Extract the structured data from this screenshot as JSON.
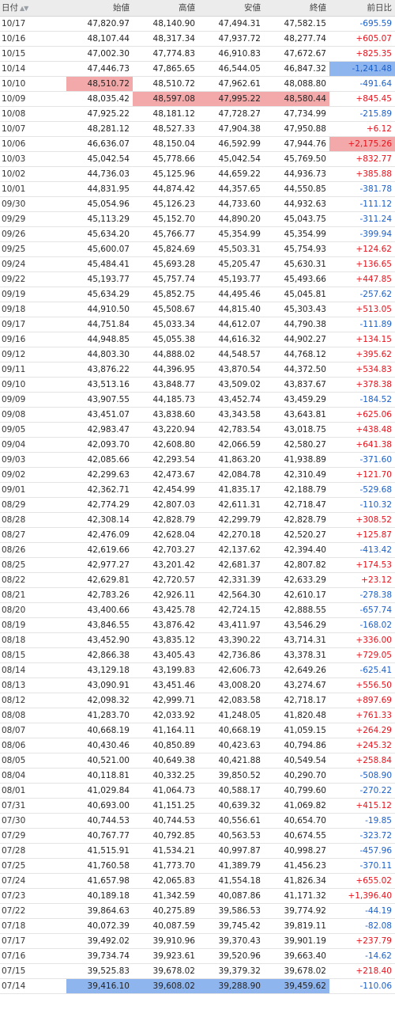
{
  "table": {
    "headers": [
      "日付",
      "始値",
      "高値",
      "安値",
      "終値",
      "前日比"
    ],
    "sort_icon": "sort-up-down-icon",
    "colors": {
      "up": "#e8101a",
      "down": "#1b5fc9",
      "highlight_red": "#f3a9a9",
      "highlight_blue": "#8fb5ee"
    },
    "rows": [
      {
        "date": "10/17",
        "open": "47,820.97",
        "high": "48,140.90",
        "low": "47,494.31",
        "close": "47,582.15",
        "change": "-695.59"
      },
      {
        "date": "10/16",
        "open": "48,107.44",
        "high": "48,317.34",
        "low": "47,937.72",
        "close": "48,277.74",
        "change": "+605.07"
      },
      {
        "date": "10/15",
        "open": "47,002.30",
        "high": "47,774.83",
        "low": "46,910.83",
        "close": "47,672.67",
        "change": "+825.35"
      },
      {
        "date": "10/14",
        "open": "47,446.73",
        "high": "47,865.65",
        "low": "46,544.05",
        "close": "46,847.32",
        "change": "-1,241.48",
        "hl": {
          "change": "blue"
        }
      },
      {
        "date": "10/10",
        "open": "48,510.72",
        "high": "48,510.72",
        "low": "47,962.61",
        "close": "48,088.80",
        "change": "-491.64",
        "hl": {
          "open": "red"
        }
      },
      {
        "date": "10/09",
        "open": "48,035.42",
        "high": "48,597.08",
        "low": "47,995.22",
        "close": "48,580.44",
        "change": "+845.45",
        "hl": {
          "high": "red",
          "low": "red",
          "close": "red"
        }
      },
      {
        "date": "10/08",
        "open": "47,925.22",
        "high": "48,181.12",
        "low": "47,728.27",
        "close": "47,734.99",
        "change": "-215.89"
      },
      {
        "date": "10/07",
        "open": "48,281.12",
        "high": "48,527.33",
        "low": "47,904.38",
        "close": "47,950.88",
        "change": "+6.12"
      },
      {
        "date": "10/06",
        "open": "46,636.07",
        "high": "48,150.04",
        "low": "46,592.99",
        "close": "47,944.76",
        "change": "+2,175.26",
        "hl": {
          "change": "red"
        }
      },
      {
        "date": "10/03",
        "open": "45,042.54",
        "high": "45,778.66",
        "low": "45,042.54",
        "close": "45,769.50",
        "change": "+832.77"
      },
      {
        "date": "10/02",
        "open": "44,736.03",
        "high": "45,125.96",
        "low": "44,659.22",
        "close": "44,936.73",
        "change": "+385.88"
      },
      {
        "date": "10/01",
        "open": "44,831.95",
        "high": "44,874.42",
        "low": "44,357.65",
        "close": "44,550.85",
        "change": "-381.78"
      },
      {
        "date": "09/30",
        "open": "45,054.96",
        "high": "45,126.23",
        "low": "44,733.60",
        "close": "44,932.63",
        "change": "-111.12"
      },
      {
        "date": "09/29",
        "open": "45,113.29",
        "high": "45,152.70",
        "low": "44,890.20",
        "close": "45,043.75",
        "change": "-311.24"
      },
      {
        "date": "09/26",
        "open": "45,634.20",
        "high": "45,766.77",
        "low": "45,354.99",
        "close": "45,354.99",
        "change": "-399.94"
      },
      {
        "date": "09/25",
        "open": "45,600.07",
        "high": "45,824.69",
        "low": "45,503.31",
        "close": "45,754.93",
        "change": "+124.62"
      },
      {
        "date": "09/24",
        "open": "45,484.41",
        "high": "45,693.28",
        "low": "45,205.47",
        "close": "45,630.31",
        "change": "+136.65"
      },
      {
        "date": "09/22",
        "open": "45,193.77",
        "high": "45,757.74",
        "low": "45,193.77",
        "close": "45,493.66",
        "change": "+447.85"
      },
      {
        "date": "09/19",
        "open": "45,634.29",
        "high": "45,852.75",
        "low": "44,495.46",
        "close": "45,045.81",
        "change": "-257.62"
      },
      {
        "date": "09/18",
        "open": "44,910.50",
        "high": "45,508.67",
        "low": "44,815.40",
        "close": "45,303.43",
        "change": "+513.05"
      },
      {
        "date": "09/17",
        "open": "44,751.84",
        "high": "45,033.34",
        "low": "44,612.07",
        "close": "44,790.38",
        "change": "-111.89"
      },
      {
        "date": "09/16",
        "open": "44,948.85",
        "high": "45,055.38",
        "low": "44,616.32",
        "close": "44,902.27",
        "change": "+134.15"
      },
      {
        "date": "09/12",
        "open": "44,803.30",
        "high": "44,888.02",
        "low": "44,548.57",
        "close": "44,768.12",
        "change": "+395.62"
      },
      {
        "date": "09/11",
        "open": "43,876.22",
        "high": "44,396.95",
        "low": "43,870.54",
        "close": "44,372.50",
        "change": "+534.83"
      },
      {
        "date": "09/10",
        "open": "43,513.16",
        "high": "43,848.77",
        "low": "43,509.02",
        "close": "43,837.67",
        "change": "+378.38"
      },
      {
        "date": "09/09",
        "open": "43,907.55",
        "high": "44,185.73",
        "low": "43,452.74",
        "close": "43,459.29",
        "change": "-184.52"
      },
      {
        "date": "09/08",
        "open": "43,451.07",
        "high": "43,838.60",
        "low": "43,343.58",
        "close": "43,643.81",
        "change": "+625.06"
      },
      {
        "date": "09/05",
        "open": "42,983.47",
        "high": "43,220.94",
        "low": "42,783.54",
        "close": "43,018.75",
        "change": "+438.48"
      },
      {
        "date": "09/04",
        "open": "42,093.70",
        "high": "42,608.80",
        "low": "42,066.59",
        "close": "42,580.27",
        "change": "+641.38"
      },
      {
        "date": "09/03",
        "open": "42,085.66",
        "high": "42,293.54",
        "low": "41,863.20",
        "close": "41,938.89",
        "change": "-371.60"
      },
      {
        "date": "09/02",
        "open": "42,299.63",
        "high": "42,473.67",
        "low": "42,084.78",
        "close": "42,310.49",
        "change": "+121.70"
      },
      {
        "date": "09/01",
        "open": "42,362.71",
        "high": "42,454.99",
        "low": "41,835.17",
        "close": "42,188.79",
        "change": "-529.68"
      },
      {
        "date": "08/29",
        "open": "42,774.29",
        "high": "42,807.03",
        "low": "42,611.31",
        "close": "42,718.47",
        "change": "-110.32"
      },
      {
        "date": "08/28",
        "open": "42,308.14",
        "high": "42,828.79",
        "low": "42,299.79",
        "close": "42,828.79",
        "change": "+308.52"
      },
      {
        "date": "08/27",
        "open": "42,476.09",
        "high": "42,628.04",
        "low": "42,270.18",
        "close": "42,520.27",
        "change": "+125.87"
      },
      {
        "date": "08/26",
        "open": "42,619.66",
        "high": "42,703.27",
        "low": "42,137.62",
        "close": "42,394.40",
        "change": "-413.42"
      },
      {
        "date": "08/25",
        "open": "42,977.27",
        "high": "43,201.42",
        "low": "42,681.37",
        "close": "42,807.82",
        "change": "+174.53"
      },
      {
        "date": "08/22",
        "open": "42,629.81",
        "high": "42,720.57",
        "low": "42,331.39",
        "close": "42,633.29",
        "change": "+23.12"
      },
      {
        "date": "08/21",
        "open": "42,783.26",
        "high": "42,926.11",
        "low": "42,564.30",
        "close": "42,610.17",
        "change": "-278.38"
      },
      {
        "date": "08/20",
        "open": "43,400.66",
        "high": "43,425.78",
        "low": "42,724.15",
        "close": "42,888.55",
        "change": "-657.74"
      },
      {
        "date": "08/19",
        "open": "43,846.55",
        "high": "43,876.42",
        "low": "43,411.97",
        "close": "43,546.29",
        "change": "-168.02"
      },
      {
        "date": "08/18",
        "open": "43,452.90",
        "high": "43,835.12",
        "low": "43,390.22",
        "close": "43,714.31",
        "change": "+336.00"
      },
      {
        "date": "08/15",
        "open": "42,866.38",
        "high": "43,405.43",
        "low": "42,736.86",
        "close": "43,378.31",
        "change": "+729.05"
      },
      {
        "date": "08/14",
        "open": "43,129.18",
        "high": "43,199.83",
        "low": "42,606.73",
        "close": "42,649.26",
        "change": "-625.41"
      },
      {
        "date": "08/13",
        "open": "43,090.91",
        "high": "43,451.46",
        "low": "43,008.20",
        "close": "43,274.67",
        "change": "+556.50"
      },
      {
        "date": "08/12",
        "open": "42,098.32",
        "high": "42,999.71",
        "low": "42,083.58",
        "close": "42,718.17",
        "change": "+897.69"
      },
      {
        "date": "08/08",
        "open": "41,283.70",
        "high": "42,033.92",
        "low": "41,248.05",
        "close": "41,820.48",
        "change": "+761.33"
      },
      {
        "date": "08/07",
        "open": "40,668.19",
        "high": "41,164.11",
        "low": "40,668.19",
        "close": "41,059.15",
        "change": "+264.29"
      },
      {
        "date": "08/06",
        "open": "40,430.46",
        "high": "40,850.89",
        "low": "40,423.63",
        "close": "40,794.86",
        "change": "+245.32"
      },
      {
        "date": "08/05",
        "open": "40,521.00",
        "high": "40,649.38",
        "low": "40,421.88",
        "close": "40,549.54",
        "change": "+258.84"
      },
      {
        "date": "08/04",
        "open": "40,118.81",
        "high": "40,332.25",
        "low": "39,850.52",
        "close": "40,290.70",
        "change": "-508.90"
      },
      {
        "date": "08/01",
        "open": "41,029.84",
        "high": "41,064.73",
        "low": "40,588.17",
        "close": "40,799.60",
        "change": "-270.22"
      },
      {
        "date": "07/31",
        "open": "40,693.00",
        "high": "41,151.25",
        "low": "40,639.32",
        "close": "41,069.82",
        "change": "+415.12"
      },
      {
        "date": "07/30",
        "open": "40,744.53",
        "high": "40,744.53",
        "low": "40,556.61",
        "close": "40,654.70",
        "change": "-19.85"
      },
      {
        "date": "07/29",
        "open": "40,767.77",
        "high": "40,792.85",
        "low": "40,563.53",
        "close": "40,674.55",
        "change": "-323.72"
      },
      {
        "date": "07/28",
        "open": "41,515.91",
        "high": "41,534.21",
        "low": "40,997.87",
        "close": "40,998.27",
        "change": "-457.96"
      },
      {
        "date": "07/25",
        "open": "41,760.58",
        "high": "41,773.70",
        "low": "41,389.79",
        "close": "41,456.23",
        "change": "-370.11"
      },
      {
        "date": "07/24",
        "open": "41,657.98",
        "high": "42,065.83",
        "low": "41,554.18",
        "close": "41,826.34",
        "change": "+655.02"
      },
      {
        "date": "07/23",
        "open": "40,189.18",
        "high": "41,342.59",
        "low": "40,087.86",
        "close": "41,171.32",
        "change": "+1,396.40"
      },
      {
        "date": "07/22",
        "open": "39,864.63",
        "high": "40,275.89",
        "low": "39,586.53",
        "close": "39,774.92",
        "change": "-44.19"
      },
      {
        "date": "07/18",
        "open": "40,072.39",
        "high": "40,087.59",
        "low": "39,745.42",
        "close": "39,819.11",
        "change": "-82.08"
      },
      {
        "date": "07/17",
        "open": "39,492.02",
        "high": "39,910.96",
        "low": "39,370.43",
        "close": "39,901.19",
        "change": "+237.79"
      },
      {
        "date": "07/16",
        "open": "39,734.74",
        "high": "39,923.61",
        "low": "39,520.96",
        "close": "39,663.40",
        "change": "-14.62"
      },
      {
        "date": "07/15",
        "open": "39,525.83",
        "high": "39,678.02",
        "low": "39,379.32",
        "close": "39,678.02",
        "change": "+218.40"
      },
      {
        "date": "07/14",
        "open": "39,416.10",
        "high": "39,608.02",
        "low": "39,288.90",
        "close": "39,459.62",
        "change": "-110.06",
        "hl": {
          "open": "blue",
          "high": "blue",
          "low": "blue",
          "close": "blue"
        }
      }
    ]
  }
}
